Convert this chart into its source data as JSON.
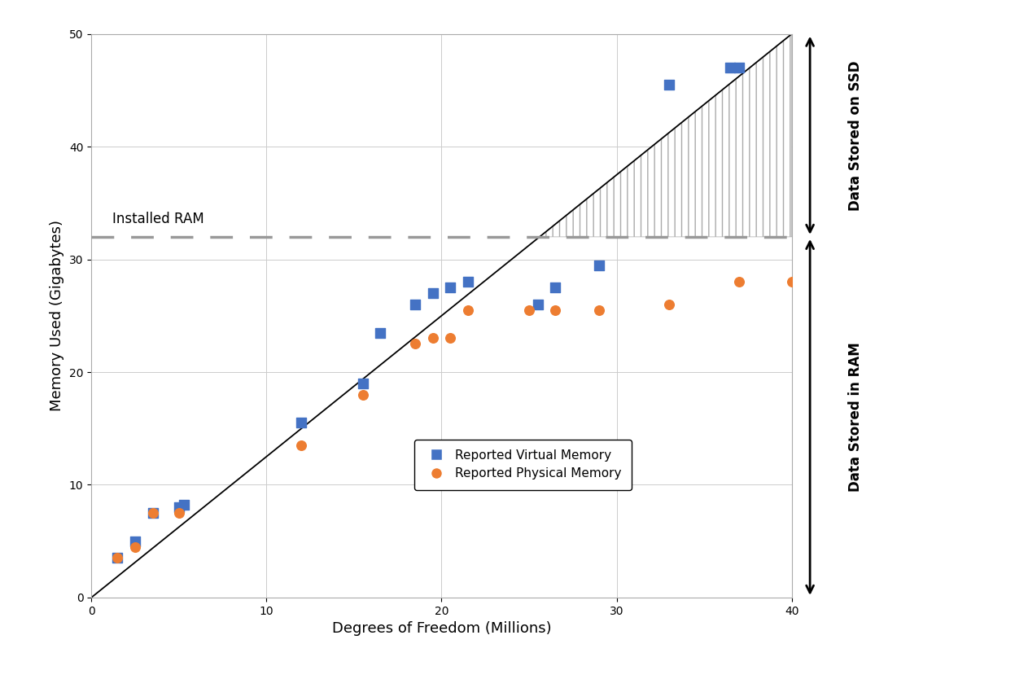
{
  "virtual_memory_x": [
    1.5,
    2.5,
    3.5,
    5.0,
    5.3,
    12.0,
    15.5,
    16.5,
    18.5,
    19.5,
    20.5,
    21.5,
    25.5,
    26.5,
    29.0,
    33.0,
    36.5,
    37.0
  ],
  "virtual_memory_y": [
    3.5,
    5.0,
    7.5,
    8.0,
    8.2,
    15.5,
    19.0,
    23.5,
    26.0,
    27.0,
    27.5,
    28.0,
    26.0,
    27.5,
    29.5,
    45.5,
    47.0,
    47.0
  ],
  "physical_memory_x": [
    1.5,
    2.5,
    3.5,
    5.0,
    12.0,
    15.5,
    18.5,
    19.5,
    20.5,
    21.5,
    25.0,
    26.5,
    29.0,
    33.0,
    37.0,
    40.0
  ],
  "physical_memory_y": [
    3.5,
    4.5,
    7.5,
    7.5,
    13.5,
    18.0,
    22.5,
    23.0,
    23.0,
    25.5,
    25.5,
    25.5,
    25.5,
    26.0,
    28.0,
    28.0
  ],
  "trendline_x": [
    0,
    40
  ],
  "trendline_y": [
    0,
    50
  ],
  "ram_level": 32,
  "xlim": [
    0,
    40
  ],
  "ylim": [
    0,
    50
  ],
  "xticks": [
    0,
    10,
    20,
    30,
    40
  ],
  "yticks": [
    0,
    10,
    20,
    30,
    40,
    50
  ],
  "xlabel": "Degrees of Freedom (Millions)",
  "ylabel": "Memory Used (Gigabytes)",
  "installed_ram_label": "Installed RAM",
  "ssd_label": "Data Stored on SSD",
  "ram_label": "Data Stored in RAM",
  "legend_virtual": "Reported Virtual Memory",
  "legend_physical": "Reported Physical Memory",
  "virtual_color": "#4472C4",
  "physical_color": "#ED7D31",
  "ram_line_color": "#999999"
}
